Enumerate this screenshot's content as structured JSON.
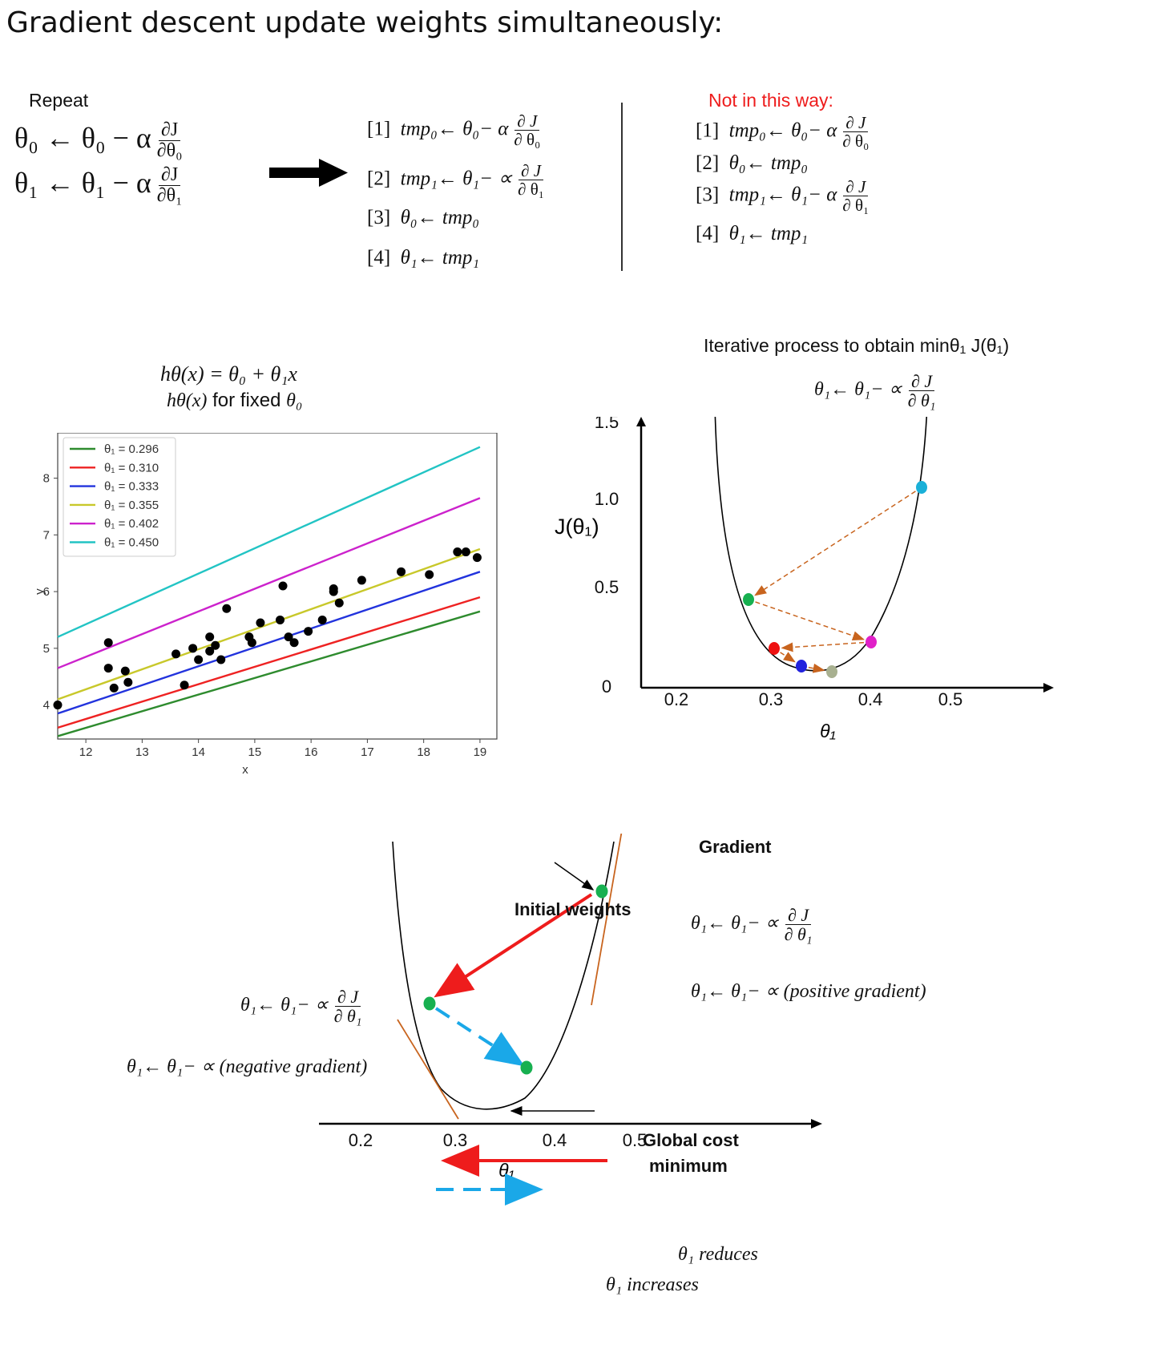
{
  "title": "Gradient descent update weights simultaneously:",
  "update_rule": {
    "repeat_label": "Repeat",
    "eq0": {
      "lhs": "θ₀",
      "arrow": "←",
      "rhs": "θ₀",
      "op": "−",
      "alpha": "α",
      "num": "∂J",
      "den": "∂θ₀"
    },
    "eq1": {
      "lhs": "θ₁",
      "arrow": "←",
      "rhs": "θ₁",
      "op": "−",
      "alpha": "α",
      "num": "∂J",
      "den": "∂θ₁"
    }
  },
  "correct_steps": [
    {
      "idx": "[1]",
      "expr": "tmp₀← θ₀− α",
      "num": "∂ J",
      "den": "∂ θ₀"
    },
    {
      "idx": "[2]",
      "expr": "tmp₁← θ₁− ∝",
      "num": "∂ J",
      "den": "∂ θ₁"
    },
    {
      "idx": "[3]",
      "expr": "θ₀← tmp₀"
    },
    {
      "idx": "[4]",
      "expr": "θ₁← tmp₁"
    }
  ],
  "wrong_heading": "Not in this way:",
  "wrong_steps": [
    {
      "idx": "[1]",
      "expr": "tmp₀← θ₀− α",
      "num": "∂ J",
      "den": "∂ θ₀"
    },
    {
      "idx": "[2]",
      "expr": "θ₀← tmp₀"
    },
    {
      "idx": "[3]",
      "expr": "tmp₁← θ₁− α",
      "num": "∂ J",
      "den": "∂ θ₁"
    },
    {
      "idx": "[4]",
      "expr": "θ₁← tmp₁"
    }
  ],
  "hypothesis": {
    "line1": "hθ(x) = θ₀ + θ₁x",
    "line2_expr": "hθ(x)",
    "line2_text": "for fixed",
    "line2_var": "θ₀"
  },
  "chart_data": [
    {
      "type": "scatter",
      "xlabel": "x",
      "ylabel": "y",
      "xlim": [
        11.5,
        19.3
      ],
      "ylim": [
        3.4,
        8.8
      ],
      "xticks": [
        "12",
        "13",
        "14",
        "15",
        "16",
        "17",
        "18",
        "19"
      ],
      "yticks": [
        "4",
        "5",
        "6",
        "7",
        "8"
      ],
      "legend_position": "top-left",
      "points": [
        [
          11.5,
          4.0
        ],
        [
          12.4,
          5.1
        ],
        [
          12.4,
          4.65
        ],
        [
          12.5,
          4.3
        ],
        [
          12.7,
          4.6
        ],
        [
          12.75,
          4.4
        ],
        [
          13.6,
          4.9
        ],
        [
          13.75,
          4.35
        ],
        [
          13.9,
          5.0
        ],
        [
          14.0,
          4.8
        ],
        [
          14.2,
          5.2
        ],
        [
          14.2,
          4.95
        ],
        [
          14.3,
          5.05
        ],
        [
          14.4,
          4.8
        ],
        [
          14.5,
          5.7
        ],
        [
          14.9,
          5.2
        ],
        [
          14.95,
          5.1
        ],
        [
          15.1,
          5.45
        ],
        [
          15.45,
          5.5
        ],
        [
          15.5,
          6.1
        ],
        [
          15.6,
          5.2
        ],
        [
          15.7,
          5.1
        ],
        [
          15.95,
          5.3
        ],
        [
          16.2,
          5.5
        ],
        [
          16.4,
          6.05
        ],
        [
          16.4,
          6.0
        ],
        [
          16.5,
          5.8
        ],
        [
          16.9,
          6.2
        ],
        [
          17.6,
          6.35
        ],
        [
          18.1,
          6.3
        ],
        [
          18.6,
          6.7
        ],
        [
          18.75,
          6.7
        ],
        [
          18.95,
          6.6
        ]
      ],
      "series": [
        {
          "name": "θ₁ = 0.296",
          "theta1": 0.296,
          "color": "#2e8b2e"
        },
        {
          "name": "θ₁ = 0.310",
          "theta1": 0.31,
          "color": "#ee2222"
        },
        {
          "name": "θ₁ = 0.333",
          "theta1": 0.333,
          "color": "#2233dd"
        },
        {
          "name": "θ₁ = 0.355",
          "theta1": 0.355,
          "color": "#c8c82a"
        },
        {
          "name": "θ₁ = 0.402",
          "theta1": 0.402,
          "color": "#cc22cc"
        },
        {
          "name": "θ₁ = 0.450",
          "theta1": 0.45,
          "color": "#22c4c4"
        }
      ],
      "lines_y_at_x_range": {
        "x": [
          11.5,
          19.0
        ],
        "y": [
          [
            3.45,
            5.65
          ],
          [
            3.6,
            5.9
          ],
          [
            3.85,
            6.35
          ],
          [
            4.1,
            6.75
          ],
          [
            4.65,
            7.65
          ],
          [
            5.2,
            8.55
          ]
        ]
      }
    },
    {
      "type": "line",
      "title": "Iterative process to obtain minθ₁ J(θ₁)",
      "update": {
        "lhs": "θ₁← θ₁− ∝",
        "num": "∂ J",
        "den": "∂ θ₁"
      },
      "xlabel": "θ₁",
      "ylabel": "J(θ₁)",
      "xticks": [
        "0.2",
        "0.3",
        "0.4",
        "0.5"
      ],
      "yticks": [
        "1.5",
        "1.0",
        "0.5",
        "0"
      ],
      "points": [
        {
          "theta1": 0.46,
          "J": 1.1,
          "color": "#1ab0d8"
        },
        {
          "theta1": 0.275,
          "J": 0.45,
          "color": "#17b050"
        },
        {
          "theta1": 0.405,
          "J": 0.25,
          "color": "#e020c8"
        },
        {
          "theta1": 0.305,
          "J": 0.2,
          "color": "#ee1111"
        },
        {
          "theta1": 0.335,
          "J": 0.1,
          "color": "#2222dd"
        },
        {
          "theta1": 0.355,
          "J": 0.08,
          "color": "#a8b090"
        }
      ]
    },
    {
      "type": "line",
      "xlabel": "θ₁",
      "xticks": [
        "0.2",
        "0.3",
        "0.4",
        "0.5"
      ],
      "points": [
        {
          "label": "Initial weights",
          "theta1": 0.47
        },
        {
          "theta1": 0.27
        },
        {
          "label": "Global cost minimum",
          "theta1": 0.375
        }
      ]
    }
  ],
  "gradient_diagram": {
    "gradient_label": "Gradient",
    "initial_label": "Initial weights",
    "global_label_1": "Global cost",
    "global_label_2": "minimum",
    "right_eq": {
      "lhs": "θ₁← θ₁− ∝",
      "num": "∂ J",
      "den": "∂ θ₁"
    },
    "right_eq2": "θ₁← θ₁− ∝ (positive gradient)",
    "left_eq": {
      "lhs": "θ₁← θ₁− ∝",
      "num": "∂ J",
      "den": "∂ θ₁"
    },
    "left_eq2": "θ₁← θ₁− ∝ (negative gradient)",
    "legend_reduces": "θ₁ reduces",
    "legend_increases": "θ₁ increases",
    "colors": {
      "reduce": "#ee1c1c",
      "increase": "#1aa8e8",
      "tangent": "#c8641e",
      "point": "#17b050"
    }
  }
}
